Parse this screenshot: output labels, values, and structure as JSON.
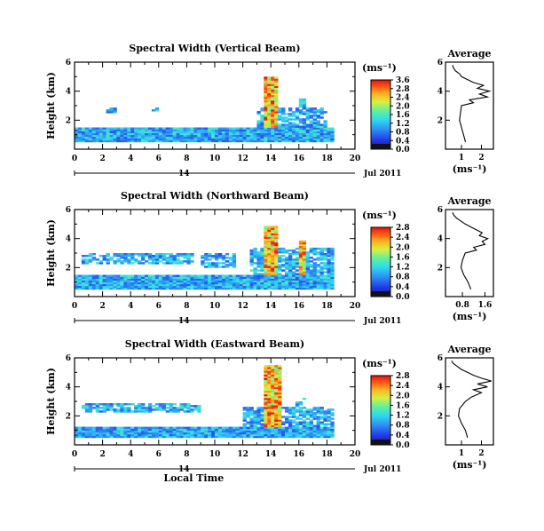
{
  "figure": {
    "date_label": "Jul 2011",
    "day_label": "14",
    "xlabel": "Local Time",
    "ylabel": "Height (km)",
    "colorbar_unit": "(ms⁻¹)",
    "profile_title": "Average",
    "profile_xlabel": "(ms⁻¹)"
  },
  "chart_data": [
    {
      "type": "heatmap",
      "title": "Spectral Width (Vertical Beam)",
      "xlabel": "Local Time",
      "ylabel": "Height (km)",
      "xlim": [
        0,
        20
      ],
      "ylim": [
        0,
        6
      ],
      "x_ticks": [
        "0",
        "2",
        "4",
        "6",
        "8",
        "10",
        "12",
        "14",
        "16",
        "18",
        "20"
      ],
      "y_ticks": [
        "2",
        "4",
        "6"
      ],
      "colorbar": {
        "min": 0.0,
        "max": 3.8,
        "ticks": [
          "0.0",
          "0.4",
          "0.8",
          "1.2",
          "1.6",
          "2.0",
          "2.4",
          "2.8",
          "3.6"
        ]
      },
      "data_region": {
        "t_start": 0.0,
        "t_end": 18.5,
        "base_top_km": 1.5,
        "clouds": [
          {
            "t_start": 2.2,
            "t_end": 3.0,
            "h_bottom": 2.5,
            "h_top": 2.8
          },
          {
            "t_start": 5.5,
            "t_end": 6.0,
            "h_bottom": 2.6,
            "h_top": 2.8
          },
          {
            "t_start": 13.0,
            "t_end": 18.0,
            "h_bottom": 1.5,
            "h_top": 2.8
          },
          {
            "t_start": 13.5,
            "t_end": 14.5,
            "h_bottom": 1.5,
            "h_top": 5.0
          },
          {
            "t_start": 15.8,
            "t_end": 16.3,
            "h_bottom": 1.5,
            "h_top": 3.4
          }
        ]
      },
      "profile": {
        "title": "Average",
        "xlabel": "(ms⁻¹)",
        "xlim": [
          0.2,
          2.6
        ],
        "x_ticks": [
          "1",
          "2"
        ],
        "y_ticks": [
          "2",
          "4",
          "6"
        ],
        "height_km": [
          0.5,
          1.0,
          1.5,
          2.0,
          2.5,
          3.0,
          3.2,
          3.4,
          3.6,
          3.8,
          4.0,
          4.2,
          4.4,
          4.6,
          4.8,
          5.0,
          5.2,
          5.4,
          5.6,
          5.8
        ],
        "value": [
          1.2,
          1.1,
          1.0,
          0.9,
          0.95,
          1.0,
          1.6,
          1.4,
          2.3,
          1.9,
          2.4,
          1.8,
          2.1,
          1.6,
          1.3,
          1.0,
          0.9,
          0.7,
          0.6,
          0.55
        ]
      }
    },
    {
      "type": "heatmap",
      "title": "Spectral Width (Northward Beam)",
      "xlabel": "Local Time",
      "ylabel": "Height (km)",
      "xlim": [
        0,
        20
      ],
      "ylim": [
        0,
        6
      ],
      "x_ticks": [
        "0",
        "2",
        "4",
        "6",
        "8",
        "10",
        "12",
        "14",
        "16",
        "18",
        "20"
      ],
      "y_ticks": [
        "2",
        "4",
        "6"
      ],
      "colorbar": {
        "min": 0.0,
        "max": 3.0,
        "ticks": [
          "0.0",
          "0.4",
          "0.8",
          "1.2",
          "1.6",
          "2.0",
          "2.4",
          "2.8"
        ]
      },
      "data_region": {
        "t_start": 0.0,
        "t_end": 18.5,
        "base_top_km": 1.4,
        "clouds": [
          {
            "t_start": 0.5,
            "t_end": 8.5,
            "h_bottom": 2.2,
            "h_top": 3.0
          },
          {
            "t_start": 9.0,
            "t_end": 11.5,
            "h_bottom": 2.0,
            "h_top": 3.0
          },
          {
            "t_start": 12.5,
            "t_end": 18.5,
            "h_bottom": 1.4,
            "h_top": 3.3
          },
          {
            "t_start": 13.5,
            "t_end": 14.5,
            "h_bottom": 1.4,
            "h_top": 4.8
          },
          {
            "t_start": 15.8,
            "t_end": 16.3,
            "h_bottom": 1.4,
            "h_top": 3.8
          }
        ]
      },
      "profile": {
        "title": "Average",
        "xlabel": "(ms⁻¹)",
        "xlim": [
          0.2,
          1.9
        ],
        "x_ticks": [
          "0.8",
          "1.6"
        ],
        "y_ticks": [
          "2",
          "4",
          "6"
        ],
        "height_km": [
          0.5,
          1.0,
          1.5,
          2.0,
          2.5,
          3.0,
          3.2,
          3.4,
          3.6,
          3.8,
          4.0,
          4.2,
          4.4,
          4.6,
          4.8,
          5.0,
          5.2,
          5.4,
          5.6,
          5.8
        ],
        "value": [
          1.1,
          1.0,
          0.85,
          0.75,
          0.8,
          0.9,
          1.3,
          1.2,
          1.6,
          1.5,
          1.7,
          1.4,
          1.5,
          1.3,
          1.1,
          0.9,
          0.75,
          0.6,
          0.5,
          0.45
        ]
      }
    },
    {
      "type": "heatmap",
      "title": "Spectral Width (Eastward Beam)",
      "xlabel": "Local Time",
      "ylabel": "Height (km)",
      "xlim": [
        0,
        20
      ],
      "ylim": [
        0,
        6
      ],
      "x_ticks": [
        "0",
        "2",
        "4",
        "6",
        "8",
        "10",
        "12",
        "14",
        "16",
        "18",
        "20"
      ],
      "y_ticks": [
        "2",
        "4",
        "6"
      ],
      "colorbar": {
        "min": 0.0,
        "max": 3.0,
        "ticks": [
          "0.0",
          "0.4",
          "0.8",
          "1.2",
          "1.6",
          "2.0",
          "2.4",
          "2.8"
        ]
      },
      "data_region": {
        "t_start": 0.0,
        "t_end": 18.5,
        "base_top_km": 1.2,
        "clouds": [
          {
            "t_start": 0.5,
            "t_end": 9.0,
            "h_bottom": 2.2,
            "h_top": 2.8
          },
          {
            "t_start": 12.0,
            "t_end": 18.5,
            "h_bottom": 1.2,
            "h_top": 2.6
          },
          {
            "t_start": 13.5,
            "t_end": 14.6,
            "h_bottom": 1.2,
            "h_top": 5.5
          },
          {
            "t_start": 15.6,
            "t_end": 16.4,
            "h_bottom": 1.2,
            "h_top": 3.2
          }
        ]
      },
      "profile": {
        "title": "Average",
        "xlabel": "(ms⁻¹)",
        "xlim": [
          0.2,
          2.6
        ],
        "x_ticks": [
          "1",
          "2"
        ],
        "y_ticks": [
          "2",
          "4",
          "6"
        ],
        "height_km": [
          0.5,
          1.0,
          1.5,
          2.0,
          2.5,
          3.0,
          3.3,
          3.6,
          3.8,
          4.0,
          4.2,
          4.4,
          4.6,
          4.8,
          5.0,
          5.2,
          5.4,
          5.6,
          5.8
        ],
        "value": [
          1.3,
          1.2,
          1.0,
          0.85,
          0.9,
          1.2,
          1.5,
          2.0,
          1.6,
          2.3,
          1.8,
          2.5,
          2.0,
          1.6,
          1.3,
          1.0,
          0.8,
          0.6,
          0.5
        ]
      }
    }
  ]
}
